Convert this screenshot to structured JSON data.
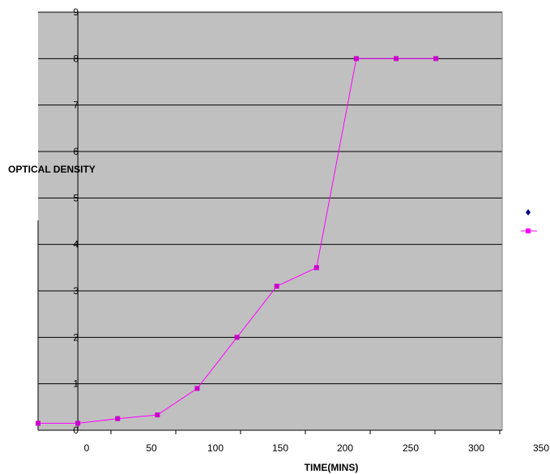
{
  "chart_data": {
    "type": "line",
    "xlabel": "TIME(MINS)",
    "ylabel": "OPTICAL DENSITY",
    "xlim": [
      -30,
      320
    ],
    "ylim": [
      0,
      9
    ],
    "x_ticks": [
      0,
      50,
      100,
      150,
      200,
      250,
      300,
      350
    ],
    "y_ticks": [
      0,
      1,
      2,
      3,
      4,
      5,
      6,
      7,
      8,
      9
    ],
    "grid": true,
    "legend_position": "right",
    "plot_background": "#c0c0c0",
    "series": [
      {
        "color": "#ff00ff",
        "marker_color": "#cc00cc",
        "x": [
          -30,
          0,
          30,
          60,
          90,
          120,
          150,
          180,
          210,
          240,
          270
        ],
        "y": [
          0.15,
          0.15,
          0.25,
          0.33,
          0.9,
          2.0,
          3.1,
          3.5,
          8.0,
          8.0,
          8.0
        ]
      }
    ],
    "legend_markers": [
      {
        "kind": "diamond",
        "color": "#000080"
      },
      {
        "kind": "line-square",
        "color": "#ff00ff"
      }
    ]
  }
}
